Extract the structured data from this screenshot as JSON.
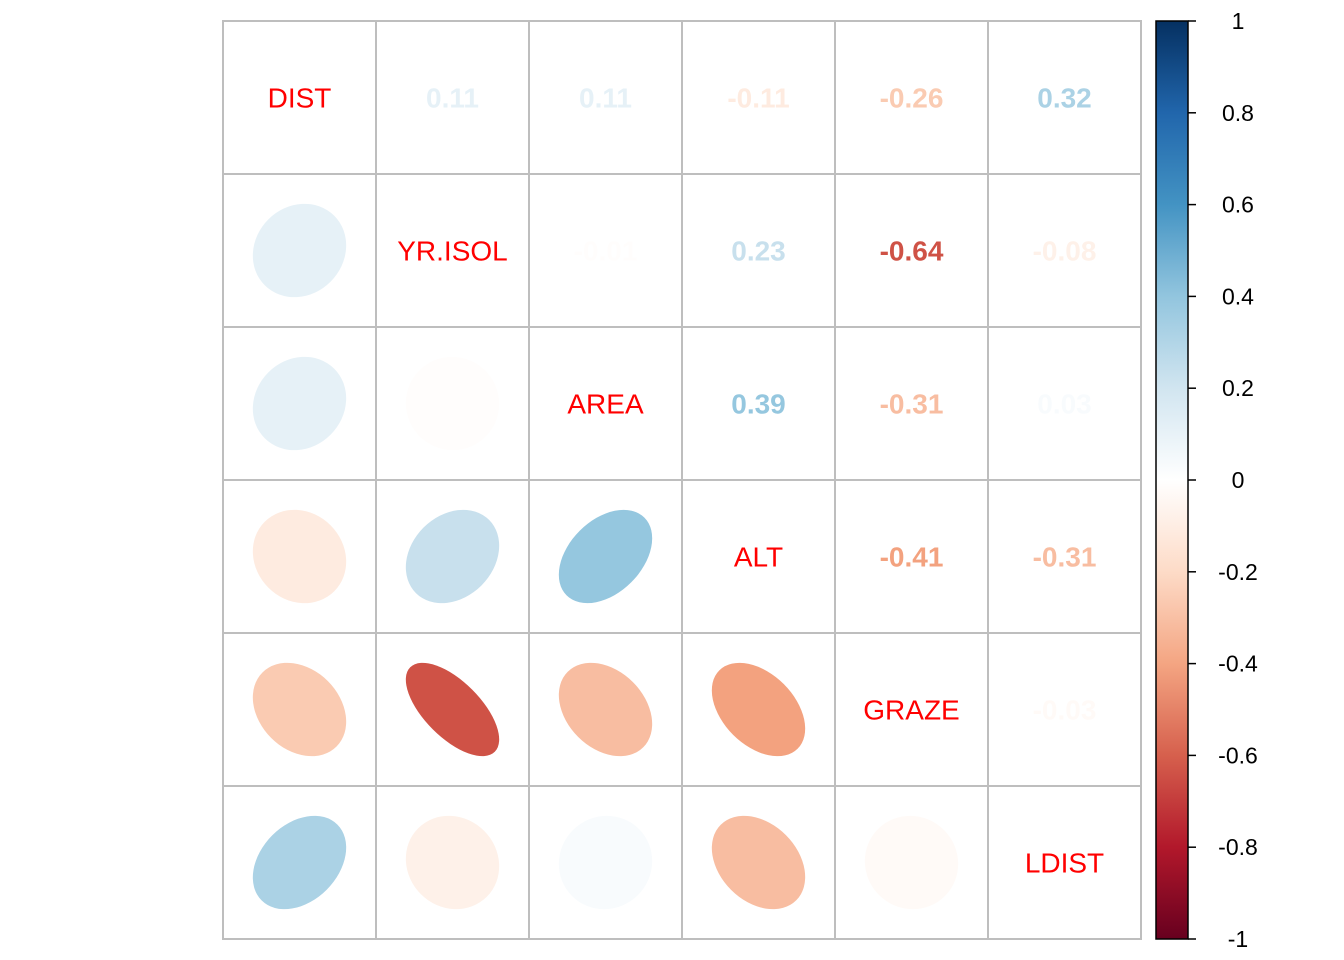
{
  "chart_data": {
    "type": "heatmap",
    "style": "corrplot-mixed",
    "lower_method": "ellipse",
    "upper_method": "number",
    "title": "",
    "variables": [
      "DIST",
      "YR.ISOL",
      "AREA",
      "ALT",
      "GRAZE",
      "LDIST"
    ],
    "matrix": [
      [
        1.0,
        0.11,
        0.11,
        -0.11,
        -0.26,
        0.32
      ],
      [
        0.11,
        1.0,
        -0.01,
        0.23,
        -0.64,
        -0.08
      ],
      [
        0.11,
        -0.01,
        1.0,
        0.39,
        -0.31,
        0.03
      ],
      [
        -0.11,
        0.23,
        0.39,
        1.0,
        -0.41,
        -0.31
      ],
      [
        -0.26,
        -0.64,
        -0.31,
        -0.41,
        1.0,
        -0.03
      ],
      [
        0.32,
        -0.08,
        0.03,
        -0.31,
        -0.03,
        1.0
      ]
    ],
    "colorbar": {
      "range": [
        -1,
        1
      ],
      "ticks": [
        "1",
        "0.8",
        "0.6",
        "0.4",
        "0.2",
        "0",
        "-0.2",
        "-0.4",
        "-0.6",
        "-0.8",
        "-1"
      ]
    },
    "colors": {
      "label": "#ff0000",
      "grid": "#bebebe",
      "palette": [
        "#67001F",
        "#B2182B",
        "#D6604D",
        "#F4A582",
        "#FDDBC7",
        "#FFFFFF",
        "#D1E5F0",
        "#92C5DE",
        "#4393C3",
        "#2166AC",
        "#053061"
      ]
    }
  }
}
